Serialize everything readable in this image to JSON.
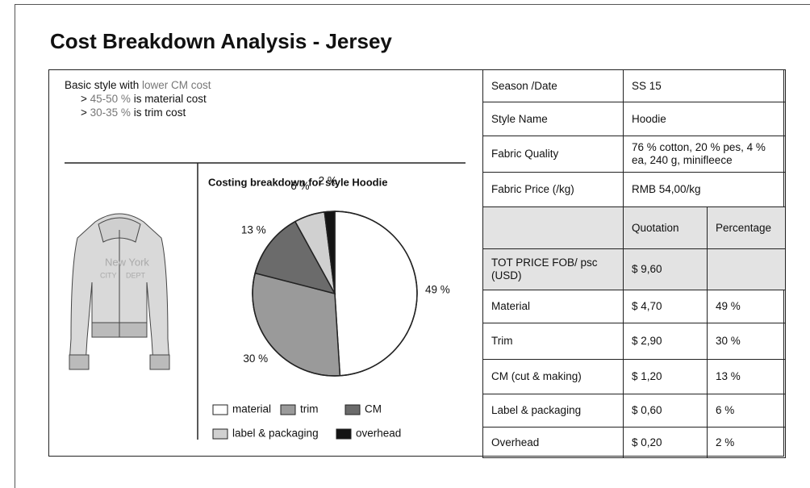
{
  "header": {
    "title": "Cost Breakdown Analysis - Jersey"
  },
  "notes": {
    "intro": [
      "Basic style with ",
      "lower CM cost"
    ],
    "bullets": [
      [
        "> ",
        "45-50 %",
        " is material cost"
      ],
      [
        "> ",
        "30-35 %",
        " is trim cost"
      ]
    ]
  },
  "hoodie_print": [
    "New York",
    "CITY",
    "DEPT"
  ],
  "chart_data": {
    "type": "pie",
    "title": "Costing breakdown for style  Hoodie",
    "categories": [
      "material",
      "trim",
      "CM",
      "label & packaging",
      "overhead"
    ],
    "values": [
      49,
      30,
      13,
      6,
      2
    ],
    "value_labels": [
      "49 %",
      "30 %",
      "13 %",
      "6 %",
      "2 %"
    ],
    "colors": [
      "#ffffff",
      "#9a9a9a",
      "#6b6b6b",
      "#d0d0d0",
      "#141414"
    ]
  },
  "table": {
    "info_rows": [
      [
        "Season /Date",
        "SS 15"
      ],
      [
        "Style Name",
        "Hoodie"
      ],
      [
        "Fabric Quality",
        "76 % cotton, 20 % pes, 4 % ea, 240 g, minifleece"
      ],
      [
        "Fabric Price (/kg)",
        "RMB 54,00/kg"
      ]
    ],
    "header": [
      "Quotation",
      "Percentage"
    ],
    "cost_rows": [
      [
        "TOT PRICE FOB/ psc (USD)",
        "$ 9,60"
      ],
      [
        "Material",
        "$ 4,70",
        "49 %"
      ],
      [
        "Trim",
        "$ 2,90",
        "30 %"
      ],
      [
        "CM (cut & making)",
        "$ 1,20",
        "13 %"
      ],
      [
        "Label & packaging",
        "$ 0,60",
        "6 %"
      ],
      [
        "Overhead",
        "$ 0,20",
        "2 %"
      ]
    ]
  }
}
